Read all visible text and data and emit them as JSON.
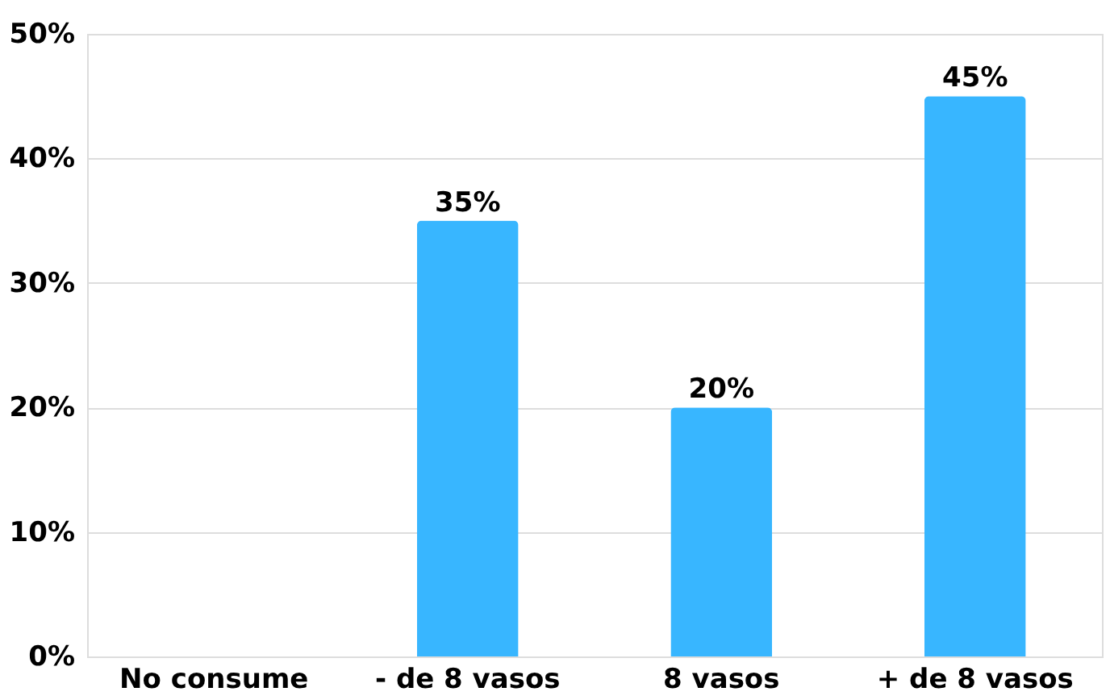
{
  "chart_data": {
    "type": "bar",
    "categories": [
      "No consume",
      "- de 8 vasos",
      "8 vasos",
      "+ de 8 vasos"
    ],
    "values": [
      0,
      35,
      20,
      45
    ],
    "value_labels": [
      null,
      "35%",
      "20%",
      "45%"
    ],
    "color": "#38b6ff",
    "ylim": [
      0,
      50
    ],
    "yticks": [
      {
        "value": 0,
        "label": "0%"
      },
      {
        "value": 10,
        "label": "10%"
      },
      {
        "value": 20,
        "label": "20%"
      },
      {
        "value": 30,
        "label": "30%"
      },
      {
        "value": 40,
        "label": "40%"
      },
      {
        "value": 50,
        "label": "50%"
      }
    ],
    "grid": "y"
  }
}
